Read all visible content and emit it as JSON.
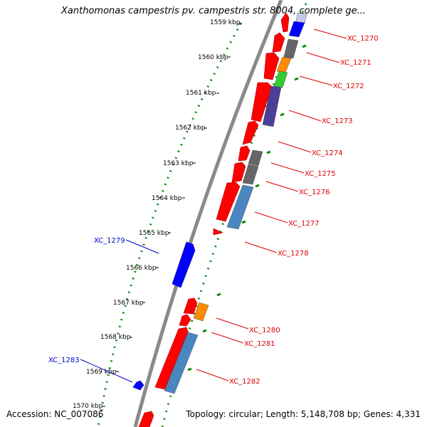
{
  "header": {
    "title": "Xanthomonas campestris pv. campestris str. 8004, complete ge..."
  },
  "footer": {
    "accession": "Accession: NC_007086",
    "summary": "Topology: circular; Length: 5,148,708 bp; Genes: 4,331"
  },
  "colors": {
    "backbone": "#8a8a8a",
    "scale_dots": "#0a8a0a",
    "forward_gene": "#ff0000",
    "reverse_gene": "#0000ff",
    "forward_label": "#dd0000",
    "reverse_label": "#0000cc",
    "cog_gray": "#666666",
    "cog_orange": "#ff8c00",
    "cog_green": "#33cc33",
    "cog_purple": "#4b3f9a",
    "cog_steel": "#4a86c0",
    "cog_lavender": "#c8c8f0"
  },
  "scale": {
    "ticks": [
      {
        "label": "1559 kbp"
      },
      {
        "label": "1560 kbp"
      },
      {
        "label": "1561 kbp"
      },
      {
        "label": "1562 kbp"
      },
      {
        "label": "1563 kbp"
      },
      {
        "label": "1564 kbp"
      },
      {
        "label": "1565 kbp"
      },
      {
        "label": "1566 kbp"
      },
      {
        "label": "1567 kbp"
      },
      {
        "label": "1568 kbp"
      },
      {
        "label": "1569 kbp"
      },
      {
        "label": "1570 kbp"
      }
    ]
  },
  "genes": {
    "forward": [
      {
        "label": "XC_1270"
      },
      {
        "label": "XC_1271"
      },
      {
        "label": "XC_1272"
      },
      {
        "label": "XC_1273"
      },
      {
        "label": "XC_1274"
      },
      {
        "label": "XC_1275"
      },
      {
        "label": "XC_1276"
      },
      {
        "label": "XC_1277"
      },
      {
        "label": "XC_1278"
      },
      {
        "label": "XC_1280"
      },
      {
        "label": "XC_1281"
      },
      {
        "label": "XC_1282"
      }
    ],
    "reverse": [
      {
        "label": "XC_1279"
      },
      {
        "label": "XC_1283"
      }
    ]
  }
}
